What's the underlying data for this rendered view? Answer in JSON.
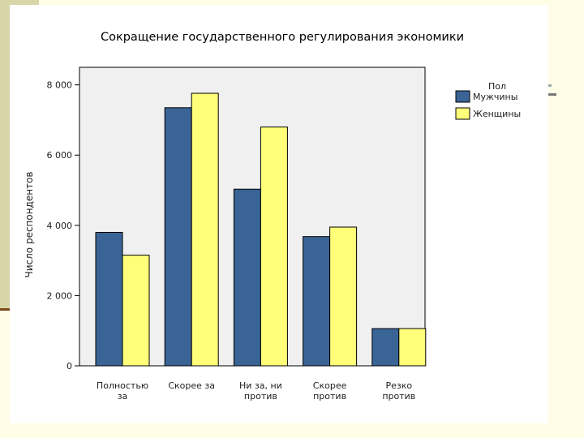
{
  "colors": {
    "page_bg": "#fffde6",
    "plot_bg": "#f0f0f0",
    "male": "#3a6495",
    "female": "#ffff7a"
  },
  "chart_data": {
    "type": "bar",
    "title": "Сокращение государственного регулирования экономики",
    "ylabel": "Число респондентов",
    "xlabel": "",
    "ylim": [
      0,
      8500
    ],
    "yticks": [
      0,
      2000,
      4000,
      6000,
      8000
    ],
    "ytick_labels": [
      "0",
      "2 000",
      "4 000",
      "6 000",
      "8 000"
    ],
    "categories": [
      [
        "Полностью",
        "за"
      ],
      [
        "Скорее за"
      ],
      [
        "Ни за, ни",
        "против"
      ],
      [
        "Скорее",
        "против"
      ],
      [
        "Резко",
        "против"
      ]
    ],
    "legend_title": "Пол",
    "legend_position": "top-right outside",
    "grid": false,
    "series": [
      {
        "name": "Мужчины",
        "color": "#3a6495",
        "values": [
          3800,
          7350,
          5030,
          3680,
          1060
        ]
      },
      {
        "name": "Женщины",
        "color": "#ffff7a",
        "values": [
          3150,
          7760,
          6800,
          3950,
          1060
        ]
      }
    ]
  }
}
